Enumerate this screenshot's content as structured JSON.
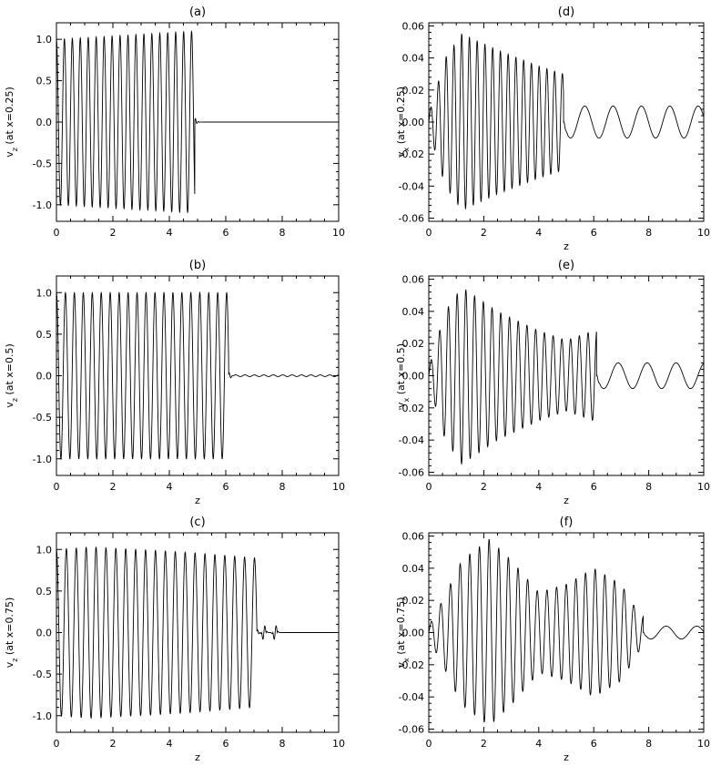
{
  "chart_data": [
    {
      "id": "a",
      "type": "line",
      "title": "(a)",
      "xlabel": "",
      "ylabel_main": "v",
      "ylabel_sub": "z",
      "ylabel_rest": " (at x=0.25)",
      "xlim": [
        0,
        10
      ],
      "ylim": [
        -1.2,
        1.2
      ],
      "xticks": [
        "0",
        "2",
        "4",
        "6",
        "8",
        "10"
      ],
      "yticks": [
        "-1.0",
        "-0.5",
        "0.0",
        "0.5",
        "1.0"
      ],
      "ytick_values": [
        -1.0,
        -0.5,
        0.0,
        0.5,
        1.0
      ],
      "series": [
        {
          "type": "wave",
          "freq_cycles_per_unit": 3.55,
          "phase": 1.5708,
          "envelope": [
            [
              0,
              1.0
            ],
            [
              4.9,
              1.1
            ]
          ],
          "front_x": 4.9,
          "tail_amplitude": 0.0,
          "tail_freq": 1.0,
          "end_x": 10
        }
      ]
    },
    {
      "id": "b",
      "type": "line",
      "title": "(b)",
      "xlabel": "z",
      "ylabel_main": "v",
      "ylabel_sub": "z",
      "ylabel_rest": " (at x=0.5)",
      "xlim": [
        0,
        10
      ],
      "ylim": [
        -1.2,
        1.2
      ],
      "xticks": [
        "0",
        "2",
        "4",
        "6",
        "8",
        "10"
      ],
      "yticks": [
        "-1.0",
        "-0.5",
        "0.0",
        "0.5",
        "1.0"
      ],
      "ytick_values": [
        -1.0,
        -0.5,
        0.0,
        0.5,
        1.0
      ],
      "series": [
        {
          "type": "wave",
          "freq_cycles_per_unit": 3.15,
          "phase": 1.5708,
          "envelope": [
            [
              0,
              1.0
            ],
            [
              6.1,
              1.0
            ]
          ],
          "front_x": 6.1,
          "tail_amplitude": 0.01,
          "tail_freq": 3.0,
          "end_x": 10
        }
      ]
    },
    {
      "id": "c",
      "type": "line",
      "title": "(c)",
      "xlabel": "z",
      "ylabel_main": "v",
      "ylabel_sub": "z",
      "ylabel_rest": " (at x=0.75)",
      "xlim": [
        0,
        10
      ],
      "ylim": [
        -1.2,
        1.2
      ],
      "xticks": [
        "0",
        "2",
        "4",
        "6",
        "8",
        "10"
      ],
      "yticks": [
        "-1.0",
        "-0.5",
        "0.0",
        "0.5",
        "1.0"
      ],
      "ytick_values": [
        -1.0,
        -0.5,
        0.0,
        0.5,
        1.0
      ],
      "series": [
        {
          "type": "wave",
          "freq_cycles_per_unit": 2.85,
          "phase": 1.5708,
          "envelope": [
            [
              0,
              1.0
            ],
            [
              1.2,
              1.03
            ],
            [
              4.5,
              0.97
            ],
            [
              7.0,
              0.9
            ]
          ],
          "front_x": 7.1,
          "tail_amplitude": 0.0,
          "tail_freq": 2.0,
          "end_x": 10,
          "ripple": [
            [
              7.35,
              0.1
            ],
            [
              7.75,
              0.1
            ]
          ]
        }
      ]
    },
    {
      "id": "d",
      "type": "line",
      "title": "(d)",
      "xlabel": "z",
      "ylabel_main": "v",
      "ylabel_sub": "x",
      "ylabel_rest": " (at x=0.25)",
      "xlim": [
        0,
        10
      ],
      "ylim": [
        -0.062,
        0.062
      ],
      "xticks": [
        "0",
        "2",
        "4",
        "6",
        "8",
        "10"
      ],
      "yticks": [
        "-0.06",
        "-0.04",
        "-0.02",
        "0.00",
        "0.02",
        "0.04",
        "0.06"
      ],
      "ytick_values": [
        -0.06,
        -0.04,
        -0.02,
        0.0,
        0.02,
        0.04,
        0.06
      ],
      "series": [
        {
          "type": "wave",
          "freq_cycles_per_unit": 3.55,
          "phase": 0,
          "envelope": [
            [
              0,
              0.005
            ],
            [
              0.6,
              0.04
            ],
            [
              1.2,
              0.055
            ],
            [
              2.5,
              0.045
            ],
            [
              4.0,
              0.035
            ],
            [
              4.9,
              0.03
            ]
          ],
          "front_x": 4.9,
          "tail_amplitude": 0.01,
          "tail_freq": 0.97,
          "end_x": 10
        }
      ]
    },
    {
      "id": "e",
      "type": "line",
      "title": "(e)",
      "xlabel": "z",
      "ylabel_main": "v",
      "ylabel_sub": "x",
      "ylabel_rest": " (at x=0.5)",
      "xlim": [
        0,
        10
      ],
      "ylim": [
        -0.062,
        0.062
      ],
      "xticks": [
        "0",
        "2",
        "4",
        "6",
        "8",
        "10"
      ],
      "yticks": [
        "-0.06",
        "-0.04",
        "-0.02",
        "0.00",
        "0.02",
        "0.04",
        "0.06"
      ],
      "ytick_values": [
        -0.06,
        -0.04,
        -0.02,
        0.0,
        0.02,
        0.04,
        0.06
      ],
      "series": [
        {
          "type": "wave",
          "freq_cycles_per_unit": 3.15,
          "phase": 0,
          "envelope": [
            [
              0,
              0.005
            ],
            [
              0.6,
              0.04
            ],
            [
              1.2,
              0.055
            ],
            [
              2.5,
              0.04
            ],
            [
              4.0,
              0.028
            ],
            [
              5.0,
              0.022
            ],
            [
              6.0,
              0.028
            ]
          ],
          "front_x": 6.1,
          "tail_amplitude": 0.008,
          "tail_freq": 0.95,
          "end_x": 10
        }
      ]
    },
    {
      "id": "f",
      "type": "line",
      "title": "(f)",
      "xlabel": "z",
      "ylabel_main": "v",
      "ylabel_sub": "x",
      "ylabel_rest": " (at x=0.75)",
      "xlim": [
        0,
        10
      ],
      "ylim": [
        -0.062,
        0.062
      ],
      "xticks": [
        "0",
        "2",
        "4",
        "6",
        "8",
        "10"
      ],
      "yticks": [
        "-0.06",
        "-0.04",
        "-0.02",
        "0.00",
        "0.02",
        "0.04",
        "0.06"
      ],
      "ytick_values": [
        -0.06,
        -0.04,
        -0.02,
        0.0,
        0.02,
        0.04,
        0.06
      ],
      "series": [
        {
          "type": "wave",
          "freq_cycles_per_unit": 2.85,
          "phase": 0,
          "envelope": [
            [
              0,
              0.004
            ],
            [
              0.5,
              0.02
            ],
            [
              1.2,
              0.045
            ],
            [
              2.2,
              0.058
            ],
            [
              3.0,
              0.045
            ],
            [
              4.0,
              0.025
            ],
            [
              5.0,
              0.03
            ],
            [
              6.0,
              0.04
            ],
            [
              7.0,
              0.03
            ],
            [
              7.7,
              0.01
            ]
          ],
          "front_x": 7.8,
          "tail_amplitude": 0.004,
          "tail_freq": 0.9,
          "end_x": 10
        }
      ]
    }
  ]
}
